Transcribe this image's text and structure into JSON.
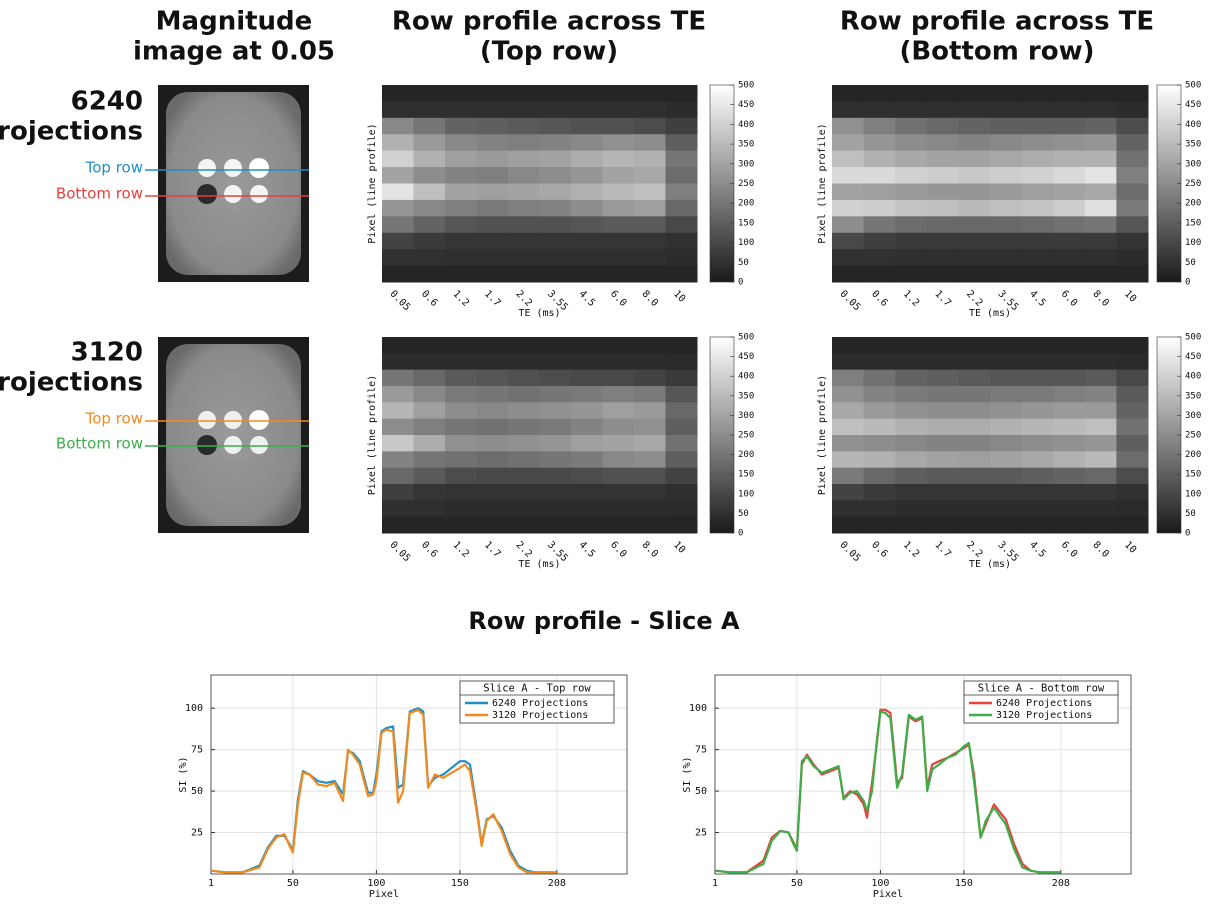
{
  "figure": {
    "column_titles": [
      [
        "Magnitude",
        "image at 0.05"
      ],
      [
        "Row profile across TE",
        "(Top row)"
      ],
      [
        "Row profile across TE",
        "(Bottom row)"
      ]
    ],
    "row_labels": [
      [
        "6240",
        "Projections"
      ],
      [
        "3120",
        "Projections"
      ]
    ],
    "line_labels": [
      [
        "Top row",
        "Bottom row"
      ],
      [
        "Top row",
        "Bottom row"
      ]
    ],
    "section_title": "Row profile - Slice A"
  },
  "chart_data": [
    {
      "type": "heatmap",
      "ylabel": "Pixel (line profile)",
      "xlabel": "TE (ms)",
      "categories": [
        "0.05",
        "0.6",
        "1.2",
        "1.7",
        "2.2",
        "3.55",
        "4.5",
        "6.0",
        "8.0",
        "10"
      ],
      "clim": [
        0,
        500
      ],
      "cticks": [
        0,
        50,
        100,
        150,
        200,
        250,
        300,
        350,
        400,
        450,
        500
      ],
      "values": [
        [
          25,
          25,
          25,
          25,
          25,
          25,
          25,
          25,
          25,
          25
        ],
        [
          45,
          45,
          45,
          45,
          45,
          45,
          45,
          45,
          45,
          40
        ],
        [
          240,
          200,
          160,
          150,
          140,
          130,
          120,
          120,
          110,
          80
        ],
        [
          330,
          280,
          240,
          230,
          220,
          230,
          240,
          260,
          250,
          150
        ],
        [
          400,
          330,
          290,
          280,
          290,
          300,
          320,
          340,
          330,
          200
        ],
        [
          300,
          250,
          230,
          220,
          240,
          250,
          270,
          300,
          310,
          180
        ],
        [
          440,
          360,
          300,
          290,
          300,
          310,
          330,
          350,
          360,
          220
        ],
        [
          270,
          240,
          220,
          210,
          220,
          230,
          250,
          280,
          290,
          170
        ],
        [
          200,
          160,
          130,
          120,
          120,
          120,
          130,
          140,
          140,
          100
        ],
        [
          90,
          70,
          60,
          60,
          60,
          60,
          60,
          60,
          60,
          50
        ],
        [
          50,
          50,
          45,
          45,
          45,
          45,
          45,
          45,
          45,
          40
        ],
        [
          25,
          25,
          25,
          25,
          25,
          25,
          25,
          25,
          25,
          25
        ]
      ]
    },
    {
      "type": "heatmap",
      "ylabel": "Pixel (line profile)",
      "xlabel": "TE (ms)",
      "categories": [
        "0.05",
        "0.6",
        "1.2",
        "1.7",
        "2.2",
        "3.55",
        "4.5",
        "6.0",
        "8.0",
        "10"
      ],
      "clim": [
        0,
        500
      ],
      "cticks": [
        0,
        50,
        100,
        150,
        200,
        250,
        300,
        350,
        400,
        450,
        500
      ],
      "values": [
        [
          25,
          25,
          25,
          25,
          25,
          25,
          25,
          25,
          25,
          25
        ],
        [
          45,
          45,
          45,
          45,
          45,
          45,
          45,
          45,
          45,
          40
        ],
        [
          260,
          220,
          190,
          170,
          160,
          150,
          150,
          150,
          160,
          110
        ],
        [
          300,
          270,
          250,
          240,
          230,
          240,
          250,
          260,
          270,
          160
        ],
        [
          360,
          330,
          310,
          300,
          300,
          310,
          320,
          330,
          330,
          190
        ],
        [
          420,
          420,
          400,
          390,
          380,
          390,
          400,
          420,
          440,
          220
        ],
        [
          300,
          290,
          280,
          270,
          270,
          280,
          290,
          300,
          310,
          180
        ],
        [
          400,
          390,
          370,
          360,
          350,
          360,
          370,
          390,
          430,
          210
        ],
        [
          250,
          200,
          180,
          170,
          170,
          170,
          180,
          190,
          200,
          130
        ],
        [
          100,
          80,
          70,
          70,
          70,
          70,
          70,
          70,
          70,
          55
        ],
        [
          50,
          50,
          45,
          45,
          45,
          45,
          45,
          45,
          45,
          40
        ],
        [
          25,
          25,
          25,
          25,
          25,
          25,
          25,
          25,
          25,
          25
        ]
      ]
    },
    {
      "type": "heatmap",
      "ylabel": "Pixel (line profile)",
      "xlabel": "TE (ms)",
      "categories": [
        "0.05",
        "0.6",
        "1.2",
        "1.7",
        "2.2",
        "3.55",
        "4.5",
        "6.0",
        "8.0",
        "10"
      ],
      "clim": [
        0,
        500
      ],
      "cticks": [
        0,
        50,
        100,
        150,
        200,
        250,
        300,
        350,
        400,
        450,
        500
      ],
      "values": [
        [
          25,
          25,
          25,
          25,
          25,
          25,
          25,
          25,
          25,
          25
        ],
        [
          40,
          40,
          40,
          40,
          40,
          40,
          40,
          40,
          40,
          35
        ],
        [
          200,
          170,
          140,
          130,
          120,
          110,
          100,
          100,
          90,
          70
        ],
        [
          280,
          240,
          210,
          200,
          190,
          200,
          210,
          220,
          210,
          130
        ],
        [
          340,
          290,
          250,
          240,
          250,
          260,
          270,
          290,
          280,
          170
        ],
        [
          250,
          220,
          200,
          190,
          200,
          210,
          230,
          250,
          260,
          150
        ],
        [
          380,
          320,
          260,
          250,
          260,
          270,
          290,
          300,
          310,
          190
        ],
        [
          230,
          200,
          190,
          180,
          190,
          200,
          210,
          240,
          250,
          150
        ],
        [
          170,
          140,
          110,
          100,
          100,
          100,
          110,
          120,
          120,
          90
        ],
        [
          80,
          60,
          55,
          55,
          55,
          55,
          55,
          55,
          55,
          45
        ],
        [
          45,
          45,
          40,
          40,
          40,
          40,
          40,
          40,
          40,
          35
        ],
        [
          25,
          25,
          25,
          25,
          25,
          25,
          25,
          25,
          25,
          25
        ]
      ]
    },
    {
      "type": "heatmap",
      "ylabel": "Pixel (line profile)",
      "xlabel": "TE (ms)",
      "categories": [
        "0.05",
        "0.6",
        "1.2",
        "1.7",
        "2.2",
        "3.55",
        "4.5",
        "6.0",
        "8.0",
        "10"
      ],
      "clim": [
        0,
        500
      ],
      "cticks": [
        0,
        50,
        100,
        150,
        200,
        250,
        300,
        350,
        400,
        450,
        500
      ],
      "values": [
        [
          25,
          25,
          25,
          25,
          25,
          25,
          25,
          25,
          25,
          25
        ],
        [
          40,
          40,
          40,
          40,
          40,
          40,
          40,
          40,
          40,
          35
        ],
        [
          220,
          190,
          160,
          150,
          140,
          130,
          130,
          130,
          140,
          100
        ],
        [
          260,
          230,
          210,
          200,
          200,
          210,
          210,
          220,
          230,
          140
        ],
        [
          310,
          280,
          260,
          250,
          250,
          260,
          270,
          280,
          280,
          160
        ],
        [
          360,
          350,
          330,
          320,
          320,
          330,
          340,
          350,
          360,
          190
        ],
        [
          260,
          250,
          240,
          230,
          230,
          240,
          250,
          260,
          270,
          150
        ],
        [
          340,
          330,
          310,
          300,
          290,
          300,
          310,
          330,
          350,
          180
        ],
        [
          210,
          170,
          150,
          140,
          140,
          140,
          150,
          160,
          170,
          110
        ],
        [
          90,
          70,
          60,
          60,
          60,
          60,
          60,
          60,
          60,
          50
        ],
        [
          45,
          45,
          40,
          40,
          40,
          40,
          40,
          40,
          40,
          35
        ],
        [
          25,
          25,
          25,
          25,
          25,
          25,
          25,
          25,
          25,
          25
        ]
      ]
    },
    {
      "type": "line",
      "legend_title": "Slice A - Top row",
      "xlabel": "Pixel",
      "ylabel": "SI (%)",
      "xlim": [
        1,
        250
      ],
      "ylim": [
        0,
        120
      ],
      "xticks": [
        1,
        50,
        100,
        150,
        208
      ],
      "yticks": [
        25,
        50,
        75,
        100
      ],
      "grid": true,
      "x": [
        1,
        10,
        20,
        30,
        35,
        40,
        45,
        48,
        50,
        53,
        56,
        60,
        65,
        70,
        75,
        80,
        83,
        86,
        90,
        95,
        98,
        100,
        103,
        106,
        110,
        113,
        116,
        120,
        125,
        128,
        131,
        135,
        140,
        145,
        150,
        153,
        156,
        160,
        163,
        166,
        170,
        175,
        180,
        185,
        190,
        195,
        200,
        208
      ],
      "series": [
        {
          "name": "6240 Projections",
          "color": "#1f8fc8",
          "values": [
            2,
            1,
            1,
            5,
            16,
            23,
            23,
            18,
            14,
            45,
            62,
            60,
            56,
            55,
            56,
            48,
            74,
            73,
            68,
            49,
            49,
            60,
            86,
            88,
            89,
            52,
            54,
            98,
            100,
            98,
            53,
            58,
            60,
            64,
            68,
            68,
            66,
            40,
            18,
            33,
            35,
            28,
            14,
            5,
            2,
            1,
            1,
            1
          ]
        },
        {
          "name": "3120 Projections",
          "color": "#f28a1e",
          "values": [
            2,
            1,
            1,
            4,
            15,
            22,
            24,
            17,
            13,
            42,
            61,
            60,
            54,
            53,
            55,
            44,
            75,
            72,
            66,
            47,
            48,
            56,
            85,
            87,
            86,
            43,
            50,
            97,
            99,
            96,
            52,
            60,
            58,
            61,
            64,
            66,
            62,
            38,
            17,
            32,
            36,
            26,
            12,
            4,
            1,
            1,
            1,
            1
          ]
        }
      ]
    },
    {
      "type": "line",
      "legend_title": "Slice A - Bottom row",
      "xlabel": "Pixel",
      "ylabel": "SI (%)",
      "xlim": [
        1,
        250
      ],
      "ylim": [
        0,
        120
      ],
      "xticks": [
        1,
        50,
        100,
        150,
        208
      ],
      "yticks": [
        25,
        50,
        75,
        100
      ],
      "grid": true,
      "x": [
        1,
        10,
        20,
        30,
        35,
        40,
        45,
        48,
        50,
        53,
        56,
        60,
        65,
        70,
        75,
        78,
        82,
        86,
        90,
        92,
        95,
        98,
        100,
        103,
        106,
        110,
        113,
        117,
        121,
        125,
        128,
        131,
        135,
        140,
        145,
        150,
        153,
        156,
        160,
        163,
        168,
        175,
        180,
        185,
        190,
        195,
        200,
        208
      ],
      "series": [
        {
          "name": "6240 Projections",
          "color": "#e8403b",
          "values": [
            2,
            1,
            1,
            8,
            22,
            26,
            25,
            19,
            15,
            66,
            72,
            66,
            60,
            62,
            64,
            46,
            50,
            48,
            42,
            34,
            55,
            80,
            99,
            99,
            97,
            55,
            58,
            95,
            92,
            94,
            52,
            66,
            68,
            70,
            73,
            76,
            78,
            60,
            22,
            30,
            42,
            33,
            18,
            6,
            2,
            1,
            1,
            1
          ]
        },
        {
          "name": "3120 Projections",
          "color": "#3cae4a",
          "values": [
            2,
            1,
            1,
            6,
            20,
            26,
            25,
            18,
            14,
            68,
            71,
            65,
            61,
            63,
            65,
            45,
            49,
            50,
            44,
            38,
            50,
            82,
            98,
            97,
            94,
            52,
            60,
            96,
            93,
            95,
            50,
            63,
            66,
            70,
            72,
            77,
            79,
            56,
            22,
            32,
            40,
            30,
            15,
            4,
            2,
            1,
            1,
            1
          ]
        }
      ]
    }
  ]
}
